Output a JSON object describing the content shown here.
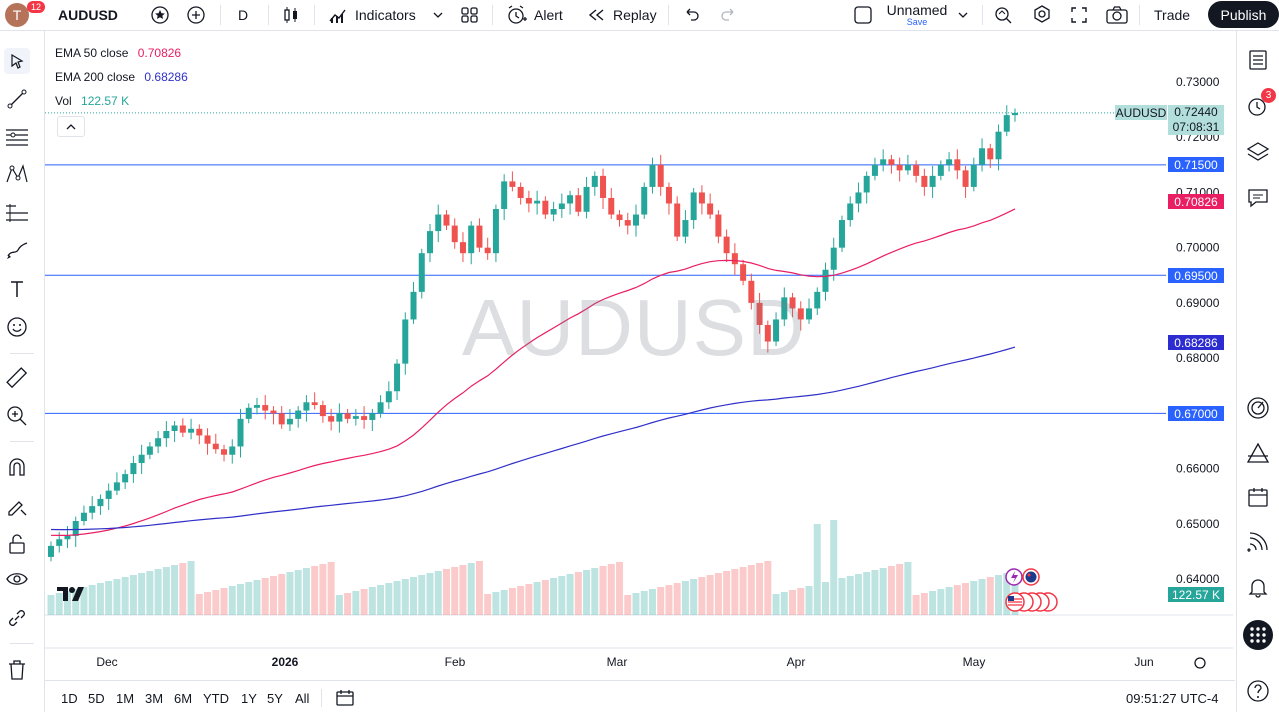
{
  "header": {
    "notifications": "12",
    "symbol": "AUDUSD",
    "interval": "D",
    "indicators_label": "Indicators",
    "alert_label": "Alert",
    "replay_label": "Replay",
    "layout_name": "Unnamed",
    "layout_save": "Save",
    "trade_label": "Trade",
    "publish_label": "Publish"
  },
  "legend": {
    "ema50_label": "EMA 50 close",
    "ema50_value": "0.70826",
    "ema200_label": "EMA 200 close",
    "ema200_value": "0.68286",
    "vol_label": "Vol",
    "vol_value": "122.57 K"
  },
  "watermark": "AUDUSD",
  "colors": {
    "up": "#26a69a",
    "down": "#ef5350",
    "ema50": "#e91e63",
    "ema200": "#3030c8",
    "hline": "#2962ff"
  },
  "price_axis": [
    "0.73000",
    "0.72000",
    "0.71000",
    "0.70000",
    "0.69000",
    "0.68000",
    "0.67000",
    "0.66000",
    "0.65000",
    "0.64000"
  ],
  "price_tags": {
    "symbol": "AUDUSD",
    "last": "0.72440",
    "countdown": "07:08:31",
    "h1": "0.71500",
    "ema50": "0.70826",
    "h2": "0.69500",
    "ema200": "0.68286",
    "h3": "0.67000",
    "vol": "122.57 K"
  },
  "time_axis": [
    "Dec",
    "2026",
    "Feb",
    "Mar",
    "Apr",
    "May",
    "Jun"
  ],
  "ranges": [
    "1D",
    "5D",
    "1M",
    "3M",
    "6M",
    "YTD",
    "1Y",
    "5Y",
    "All"
  ],
  "clock": "09:51:27 UTC-4",
  "right_badge": "3",
  "chart_data": {
    "type": "candlestick",
    "symbol": "AUDUSD",
    "interval": "D",
    "ylim": [
      0.64,
      0.73
    ],
    "horizontal_levels": [
      0.715,
      0.695,
      0.67
    ],
    "last_price": 0.7244,
    "ema50_last": 0.70826,
    "ema200_last": 0.68286,
    "volume_last": "122.57 K"
  }
}
